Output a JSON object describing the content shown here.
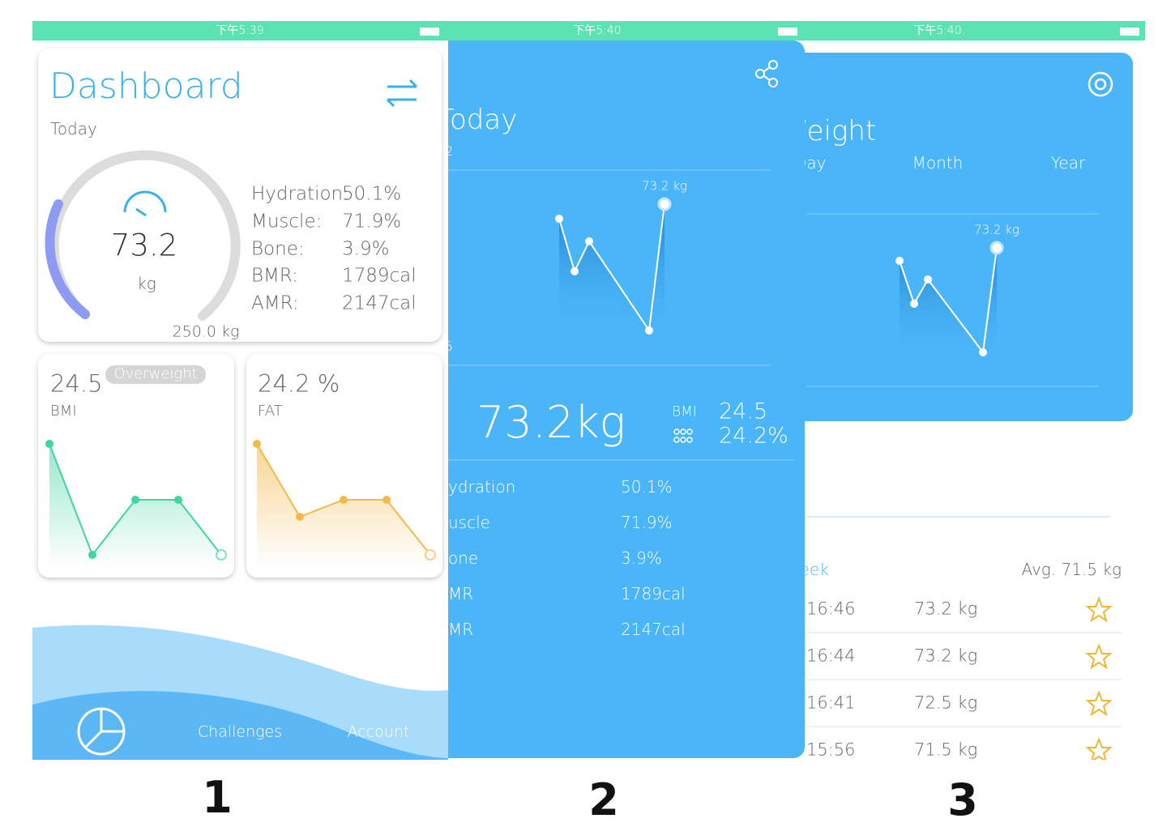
{
  "screens": [
    {
      "status_time": "下午5:39",
      "title": "Dashboard",
      "subtitle": "Today",
      "weight": "73.2",
      "unit": "kg",
      "max": "250.0 kg",
      "metrics": [
        {
          "label": "Hydration:",
          "value": "50.1%"
        },
        {
          "label": "Muscle:",
          "value": "71.9%"
        },
        {
          "label": "Bone:",
          "value": "3.9%"
        },
        {
          "label": "BMR:",
          "value": "1789cal"
        },
        {
          "label": "AMR:",
          "value": "2147cal"
        }
      ],
      "bmi": {
        "value": "24.5",
        "badge": "Overweight",
        "label": "BMI"
      },
      "fat": {
        "value": "24.2 %",
        "label": "FAT"
      },
      "nav": [
        "Challenges",
        "Account"
      ],
      "caption": "1"
    },
    {
      "status_time": "下午5:40",
      "title": "Today",
      "date_fragment": "2",
      "axis_fragment": "5",
      "point_label": "73.2 kg",
      "weight": "73.2kg",
      "bmi_label": "BMI",
      "bmi": "24.5",
      "fat": "24.2%",
      "metrics": [
        {
          "label": "ydration",
          "value": "50.1%"
        },
        {
          "label": "uscle",
          "value": "71.9%"
        },
        {
          "label": "one",
          "value": "3.9%"
        },
        {
          "label": "MR",
          "value": "1789cal"
        },
        {
          "label": "MR",
          "value": "2147cal"
        }
      ],
      "caption": "2"
    },
    {
      "status_time": "下午5:40",
      "title": "Weight",
      "tabs": [
        "Day",
        "Month",
        "Year"
      ],
      "point_label": "73.2 kg",
      "period": "Week",
      "average": "Avg. 71.5 kg",
      "records": [
        {
          "time": "16:46",
          "weight": "73.2 kg"
        },
        {
          "time": "16:44",
          "weight": "73.2 kg"
        },
        {
          "time": "16:41",
          "weight": "72.5 kg"
        },
        {
          "time": "15:56",
          "weight": "71.5 kg"
        }
      ],
      "caption": "3"
    }
  ]
}
